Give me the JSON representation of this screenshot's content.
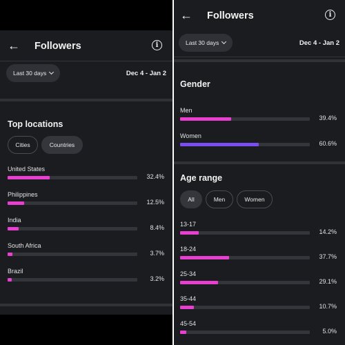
{
  "left": {
    "header": {
      "title": "Followers"
    },
    "range_button": "Last 30 days",
    "date_range": "Dec 4 - Jan 2",
    "section_title": "Top locations",
    "chips": [
      {
        "label": "Cities",
        "selected": false
      },
      {
        "label": "Countries",
        "selected": true
      }
    ],
    "rows": [
      {
        "label": "United States",
        "percent": "32.4%",
        "value": 32.4
      },
      {
        "label": "Philippines",
        "percent": "12.5%",
        "value": 12.5
      },
      {
        "label": "India",
        "percent": "8.4%",
        "value": 8.4
      },
      {
        "label": "South Africa",
        "percent": "3.7%",
        "value": 3.7
      },
      {
        "label": "Brazil",
        "percent": "3.2%",
        "value": 3.2
      }
    ]
  },
  "right": {
    "header": {
      "title": "Followers"
    },
    "range_button": "Last 30 days",
    "date_range": "Dec 4 - Jan 2",
    "gender": {
      "title": "Gender",
      "rows": [
        {
          "label": "Men",
          "percent": "39.4%",
          "value": 39.4,
          "color": "#e83fd1"
        },
        {
          "label": "Women",
          "percent": "60.6%",
          "value": 60.6,
          "color": "#7a4df0"
        }
      ]
    },
    "age": {
      "title": "Age range",
      "chips": [
        {
          "label": "All",
          "selected": true
        },
        {
          "label": "Men",
          "selected": false
        },
        {
          "label": "Women",
          "selected": false
        }
      ],
      "rows": [
        {
          "label": "13-17",
          "percent": "14.2%",
          "value": 14.2
        },
        {
          "label": "18-24",
          "percent": "37.7%",
          "value": 37.7
        },
        {
          "label": "25-34",
          "percent": "29.1%",
          "value": 29.1
        },
        {
          "label": "35-44",
          "percent": "10.7%",
          "value": 10.7
        },
        {
          "label": "45-54",
          "percent": "5.0%",
          "value": 5.0
        }
      ]
    }
  },
  "colors": {
    "bar_fill": "#e83fd1",
    "track": "#33353a",
    "background": "#1b1c1f"
  }
}
